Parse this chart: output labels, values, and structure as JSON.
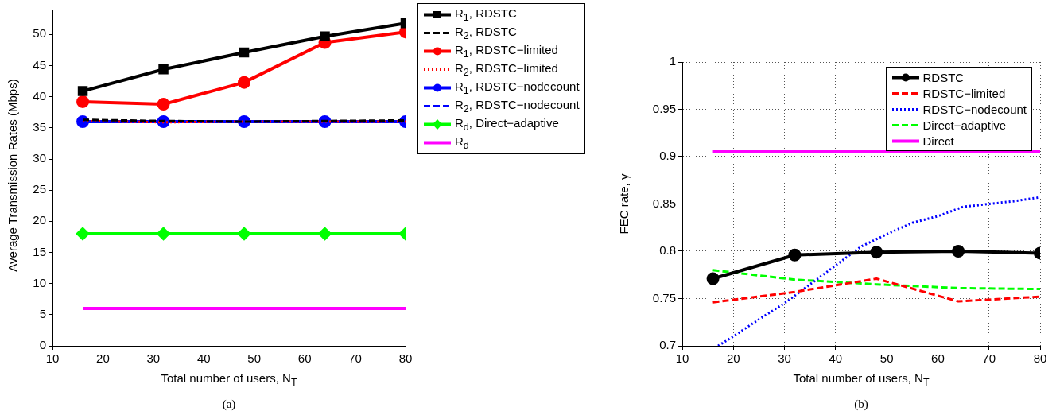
{
  "chart_data": [
    {
      "type": "line",
      "xlabel": "Total number of users, N$_{T}$",
      "ylabel": "Average Transmission Rates (Mbps)",
      "annotations": [
        "(a)"
      ],
      "x": [
        16,
        32,
        48,
        64,
        80
      ],
      "xlim": [
        10,
        80
      ],
      "xticks": [
        10,
        20,
        30,
        40,
        50,
        60,
        70,
        80
      ],
      "ylim": [
        0,
        54
      ],
      "yticks": [
        0,
        5,
        10,
        15,
        20,
        25,
        30,
        35,
        40,
        45,
        50
      ],
      "grid": false,
      "legend": "right",
      "series": [
        {
          "name": "R$_{1}$, RDSTC",
          "color": "#000000",
          "values": [
            40.9,
            44.4,
            47.1,
            49.7,
            51.8
          ],
          "line_style": "solid",
          "marker": "square"
        },
        {
          "name": "R$_{2}$, RDSTC",
          "color": "#000000",
          "values": [
            36.3,
            36.1,
            36.0,
            36.1,
            36.2
          ],
          "line_style": "dashed",
          "marker": "none"
        },
        {
          "name": "R$_{1}$, RDSTC−limited",
          "color": "#ff0000",
          "values": [
            39.2,
            38.8,
            42.3,
            48.7,
            50.4
          ],
          "line_style": "solid",
          "marker": "circle"
        },
        {
          "name": "R$_{2}$, RDSTC−limited",
          "color": "#ff0000",
          "values": [
            36.1,
            35.9,
            36.0,
            36.0,
            36.0
          ],
          "line_style": "dotted",
          "marker": "none"
        },
        {
          "name": "R$_{1}$, RDSTC−nodecount",
          "color": "#0000ff",
          "values": [
            36.0,
            36.0,
            36.0,
            36.0,
            36.0
          ],
          "line_style": "solid",
          "marker": "circle"
        },
        {
          "name": "R$_{2}$, RDSTC−nodecount",
          "color": "#0000ff",
          "values": [
            null,
            null,
            null,
            null,
            null
          ],
          "line_style": "dashed",
          "marker": "none"
        },
        {
          "name": "R$_{d}$, Direct−adaptive",
          "color": "#00ff00",
          "values": [
            18,
            18,
            18,
            18,
            18
          ],
          "line_style": "solid",
          "marker": "diamond"
        },
        {
          "name": "R$_{d}$",
          "color": "#ff00ff",
          "values": [
            6,
            6,
            6,
            6,
            6
          ],
          "line_style": "solid",
          "marker": "none"
        }
      ]
    },
    {
      "type": "line",
      "xlabel": "Total number of users, N$_{T}$",
      "ylabel": "FEC rate, γ",
      "annotations": [
        "(b)"
      ],
      "x": [
        16,
        32,
        48,
        64,
        80
      ],
      "xlim": [
        10,
        80
      ],
      "xticks": [
        10,
        20,
        30,
        40,
        50,
        60,
        70,
        80
      ],
      "ylim": [
        0.7,
        1
      ],
      "yticks": [
        0.7,
        0.75,
        0.8,
        0.85,
        0.9,
        0.95,
        1
      ],
      "grid": true,
      "legend": "top right",
      "series": [
        {
          "name": "RDSTC",
          "color": "#000000",
          "values": [
            0.771,
            0.796,
            0.799,
            0.8,
            0.798
          ],
          "line_style": "solid",
          "marker": "circle"
        },
        {
          "name": "RDSTC−limited",
          "color": "#ff0000",
          "values": [
            0.746,
            0.757,
            0.771,
            0.747,
            0.752
          ],
          "line_style": "dashed",
          "marker": "none"
        },
        {
          "name": "RDSTC−nodecount",
          "color": "#0000ff",
          "x": [
            17,
            20,
            25,
            30,
            35,
            40,
            45,
            50,
            55,
            60,
            65,
            70,
            75,
            80
          ],
          "values": [
            0.7,
            0.71,
            0.728,
            0.745,
            0.765,
            0.785,
            0.805,
            0.818,
            0.83,
            0.837,
            0.847,
            0.85,
            0.853,
            0.857
          ],
          "line_style": "dotted",
          "marker": "none"
        },
        {
          "name": "Direct−adaptive",
          "color": "#00ff00",
          "values": [
            0.78,
            0.77,
            0.765,
            0.761,
            0.76
          ],
          "line_style": "dashed",
          "marker": "none"
        },
        {
          "name": "Direct",
          "color": "#ff00ff",
          "values": [
            0.905,
            0.905,
            0.905,
            0.905,
            0.905
          ],
          "line_style": "solid",
          "marker": "none"
        }
      ]
    }
  ]
}
